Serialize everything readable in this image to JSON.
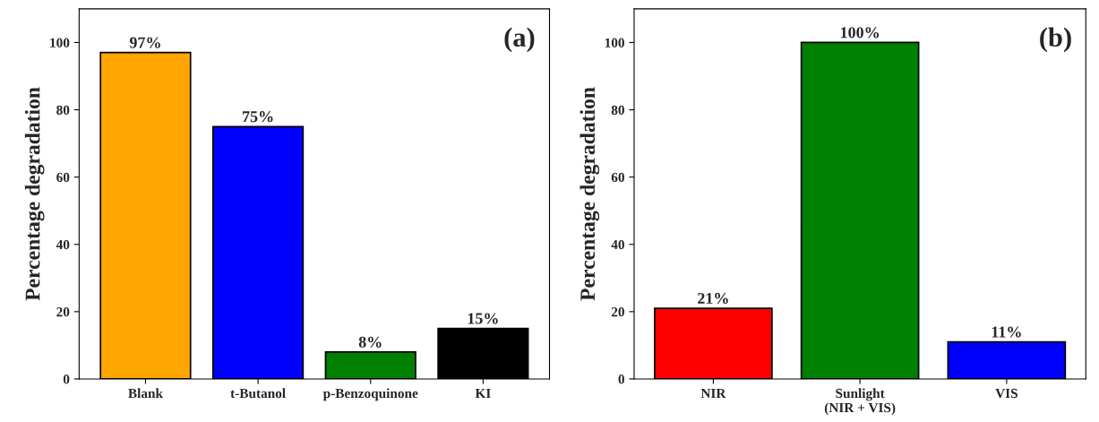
{
  "chart_data": [
    {
      "type": "bar",
      "ylabel": "Percentage degradation",
      "annotations": [
        "(a)"
      ],
      "categories": [
        "Blank",
        "t-Butanol",
        "p-Benzoquinone",
        "KI"
      ],
      "values": [
        97,
        75,
        8,
        15
      ],
      "colors": [
        "#ffa500",
        "#0000ff",
        "#008000",
        "#000000"
      ],
      "value_labels": [
        "97%",
        "75%",
        "8%",
        "15%"
      ],
      "ylim": [
        0,
        110
      ],
      "yticks": [
        0,
        20,
        40,
        60,
        80,
        100
      ],
      "grid": false,
      "legend": false
    },
    {
      "type": "bar",
      "ylabel": "Percentage degradation",
      "annotations": [
        "(b)"
      ],
      "categories": [
        "NIR",
        "Sunlight\n(NIR + VIS)",
        "VIS"
      ],
      "values": [
        21,
        100,
        11
      ],
      "colors": [
        "#ff0000",
        "#008000",
        "#0000ff"
      ],
      "value_labels": [
        "21%",
        "100%",
        "11%"
      ],
      "ylim": [
        0,
        110
      ],
      "yticks": [
        0,
        20,
        40,
        60,
        80,
        100
      ],
      "grid": false,
      "legend": false
    }
  ]
}
